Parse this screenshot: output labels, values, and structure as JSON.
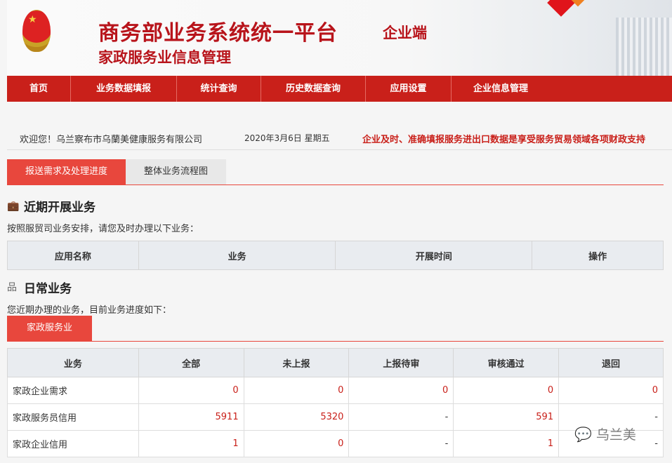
{
  "header": {
    "title": "商务部业务系统统一平台",
    "client": "企业端",
    "subtitle": "家政服务业信息管理"
  },
  "nav": [
    "首页",
    "业务数据填报",
    "统计查询",
    "历史数据查询",
    "应用设置",
    "企业信息管理"
  ],
  "info": {
    "welcome": "欢迎您！乌兰察布市乌蘭美健康服务有限公司",
    "date": "2020年3月6日  星期五",
    "notice": "企业及时、准确填报服务进出口数据是享受服务贸易领域各项财政支持"
  },
  "tabs": [
    "报送需求及处理进度",
    "整体业务流程图"
  ],
  "recent": {
    "title": "近期开展业务",
    "desc": "按照服贸司业务安排，请您及时办理以下业务：",
    "columns": [
      "应用名称",
      "业务",
      "开展时间",
      "操作"
    ]
  },
  "daily": {
    "title": "日常业务",
    "desc": "您近期办理的业务，目前业务进度如下：",
    "subtab": "家政服务业",
    "columns": [
      "业务",
      "全部",
      "未上报",
      "上报待审",
      "审核通过",
      "退回"
    ],
    "rows": [
      [
        "家政企业需求",
        "0",
        "0",
        "0",
        "0",
        "0"
      ],
      [
        "家政服务员信用",
        "5911",
        "5320",
        "-",
        "591",
        "-"
      ],
      [
        "家政企业信用",
        "1",
        "0",
        "-",
        "1",
        "-"
      ]
    ]
  },
  "watermark": "乌兰美",
  "colors": {
    "accent": "#c9201a",
    "tab_active": "#e8473d"
  }
}
